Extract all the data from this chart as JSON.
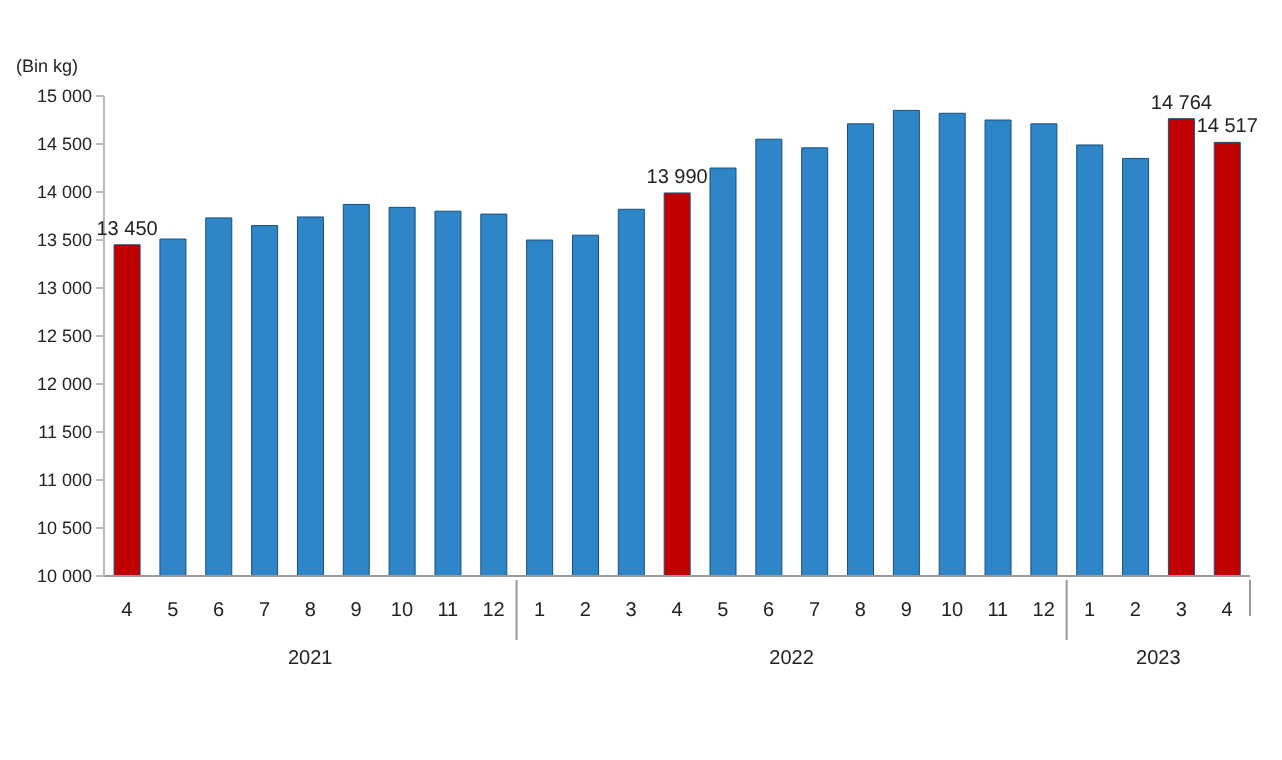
{
  "chart_data": {
    "type": "bar",
    "ylabel": "(Bin kg)",
    "categories": [
      "4",
      "5",
      "6",
      "7",
      "8",
      "9",
      "10",
      "11",
      "12",
      "1",
      "2",
      "3",
      "4",
      "5",
      "6",
      "7",
      "8",
      "9",
      "10",
      "11",
      "12",
      "1",
      "2",
      "3",
      "4"
    ],
    "values": [
      13450,
      13510,
      13730,
      13650,
      13740,
      13870,
      13840,
      13800,
      13770,
      13500,
      13550,
      13820,
      13990,
      14250,
      14550,
      14460,
      14710,
      14850,
      14820,
      14750,
      14710,
      14490,
      14350,
      14764,
      14517
    ],
    "colors": [
      "#c00000",
      "#2e86c9",
      "#2e86c9",
      "#2e86c9",
      "#2e86c9",
      "#2e86c9",
      "#2e86c9",
      "#2e86c9",
      "#2e86c9",
      "#2e86c9",
      "#2e86c9",
      "#2e86c9",
      "#c00000",
      "#2e86c9",
      "#2e86c9",
      "#2e86c9",
      "#2e86c9",
      "#2e86c9",
      "#2e86c9",
      "#2e86c9",
      "#2e86c9",
      "#2e86c9",
      "#2e86c9",
      "#c00000",
      "#c00000"
    ],
    "value_labels": [
      "13 450",
      null,
      null,
      null,
      null,
      null,
      null,
      null,
      null,
      null,
      null,
      null,
      "13 990",
      null,
      null,
      null,
      null,
      null,
      null,
      null,
      null,
      null,
      null,
      "14 764",
      "14 517"
    ],
    "ylim": [
      10000,
      15000
    ],
    "yticks": [
      {
        "value": 10000,
        "label": "10 000"
      },
      {
        "value": 10500,
        "label": "10 500"
      },
      {
        "value": 11000,
        "label": "11 000"
      },
      {
        "value": 11500,
        "label": "11 500"
      },
      {
        "value": 12000,
        "label": "12 000"
      },
      {
        "value": 12500,
        "label": "12 500"
      },
      {
        "value": 13000,
        "label": "13 000"
      },
      {
        "value": 13500,
        "label": "13 500"
      },
      {
        "value": 14000,
        "label": "14 000"
      },
      {
        "value": 14500,
        "label": "14 500"
      },
      {
        "value": 15000,
        "label": "15 000"
      }
    ],
    "annotations": [
      "2021",
      "2022",
      "2023"
    ],
    "grid": false,
    "legend": false
  }
}
